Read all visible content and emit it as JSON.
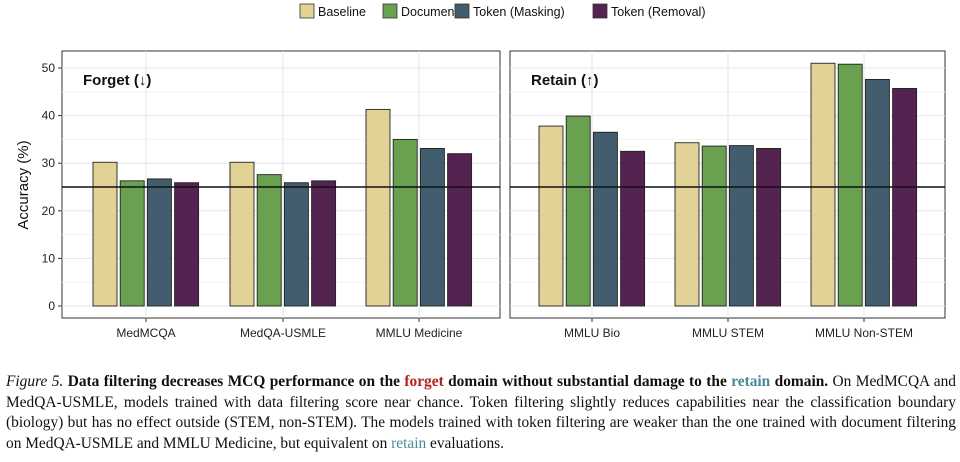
{
  "chart_data": [
    {
      "type": "bar",
      "title": "Forget (↓)",
      "ylabel": "Accuracy (%)",
      "ylim": [
        0,
        52
      ],
      "yticks": [
        0,
        10,
        20,
        30,
        40,
        50
      ],
      "chance_line": 25,
      "categories": [
        "MedMCQA",
        "MedQA-USMLE",
        "MMLU Medicine"
      ],
      "series": [
        {
          "name": "Baseline",
          "color": "#e3d296",
          "values": [
            30.2,
            30.2,
            41.3
          ]
        },
        {
          "name": "Document",
          "color": "#6aa150",
          "values": [
            26.3,
            27.6,
            35.0
          ]
        },
        {
          "name": "Token (Masking)",
          "color": "#425e6e",
          "values": [
            26.7,
            25.9,
            33.1
          ]
        },
        {
          "name": "Token (Removal)",
          "color": "#55234f",
          "values": [
            25.9,
            26.3,
            32.0
          ]
        }
      ]
    },
    {
      "type": "bar",
      "title": "Retain (↑)",
      "ylim": [
        0,
        52
      ],
      "chance_line": 25,
      "categories": [
        "MMLU Bio",
        "MMLU STEM",
        "MMLU Non-STEM"
      ],
      "series": [
        {
          "name": "Baseline",
          "color": "#e3d296",
          "values": [
            37.8,
            34.3,
            51.0
          ]
        },
        {
          "name": "Document",
          "color": "#6aa150",
          "values": [
            39.9,
            33.6,
            50.8
          ]
        },
        {
          "name": "Token (Masking)",
          "color": "#425e6e",
          "values": [
            36.5,
            33.7,
            47.6
          ]
        },
        {
          "name": "Token (Removal)",
          "color": "#55234f",
          "values": [
            32.5,
            33.1,
            45.7
          ]
        }
      ]
    }
  ],
  "caption": {
    "label": "Figure 5.",
    "bold_a": "Data filtering decreases MCQ performance on the ",
    "forget": "forget",
    "bold_b": " domain without substantial damage to the ",
    "retain": "retain",
    "bold_c": " domain.",
    "text_a": " On MedMCQA and MedQA-USMLE, models trained with data filtering score near chance. Token filtering slightly reduces capabilities near the classification boundary (biology) but has no effect outside (STEM, non-STEM). The models trained with token filtering are weaker than the one trained with document filtering on MedQA-USMLE and MMLU Medicine, but equivalent on ",
    "retain2": "retain",
    "text_b": " evaluations."
  }
}
